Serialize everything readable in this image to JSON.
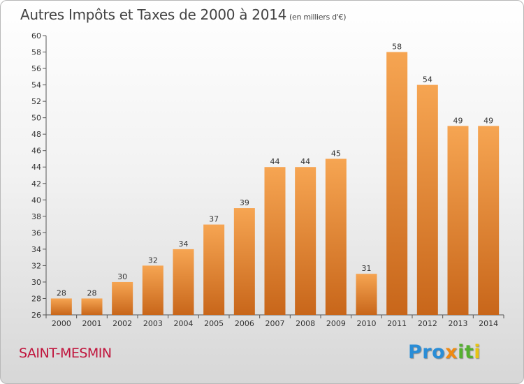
{
  "header": {
    "title": "Autres Impôts et Taxes de 2000 à 2014",
    "subtitle": "(en milliers d'€)"
  },
  "footer": {
    "commune": "SAINT-MESMIN",
    "logo_parts": [
      "Pro",
      "x",
      "it",
      "i"
    ]
  },
  "colors": {
    "bar_light": "#f6a552",
    "bar_dark": "#c8661a",
    "commune": "#c0143c"
  },
  "chart_data": {
    "type": "bar",
    "title": "Autres Impôts et Taxes de 2000 à 2014",
    "subtitle": "(en milliers d'€)",
    "categories": [
      "2000",
      "2001",
      "2002",
      "2003",
      "2004",
      "2005",
      "2006",
      "2007",
      "2008",
      "2009",
      "2010",
      "2011",
      "2012",
      "2013",
      "2014"
    ],
    "values": [
      28,
      28,
      30,
      32,
      34,
      37,
      39,
      44,
      44,
      45,
      31,
      58,
      54,
      49,
      49
    ],
    "ylim": [
      26,
      60
    ],
    "yticks": [
      26,
      28,
      30,
      32,
      34,
      36,
      38,
      40,
      42,
      44,
      46,
      48,
      50,
      52,
      54,
      56,
      58,
      60
    ],
    "grid": false,
    "legend": "none"
  }
}
